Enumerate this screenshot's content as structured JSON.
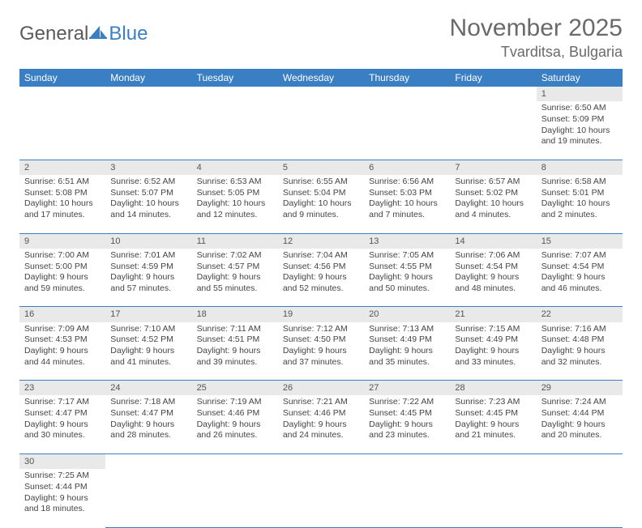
{
  "logo": {
    "word1": "General",
    "word2": "Blue"
  },
  "title": "November 2025",
  "location": "Tvarditsa, Bulgaria",
  "day_headers": [
    "Sunday",
    "Monday",
    "Tuesday",
    "Wednesday",
    "Thursday",
    "Friday",
    "Saturday"
  ],
  "colors": {
    "header_bg": "#3a7fc4",
    "header_text": "#ffffff",
    "daynum_bg": "#e9e9e9",
    "border": "#3a7fc4",
    "title_color": "#6a6a6a"
  },
  "weeks": [
    [
      null,
      null,
      null,
      null,
      null,
      null,
      {
        "n": "1",
        "sunrise": "Sunrise: 6:50 AM",
        "sunset": "Sunset: 5:09 PM",
        "daylight": "Daylight: 10 hours and 19 minutes."
      }
    ],
    [
      {
        "n": "2",
        "sunrise": "Sunrise: 6:51 AM",
        "sunset": "Sunset: 5:08 PM",
        "daylight": "Daylight: 10 hours and 17 minutes."
      },
      {
        "n": "3",
        "sunrise": "Sunrise: 6:52 AM",
        "sunset": "Sunset: 5:07 PM",
        "daylight": "Daylight: 10 hours and 14 minutes."
      },
      {
        "n": "4",
        "sunrise": "Sunrise: 6:53 AM",
        "sunset": "Sunset: 5:05 PM",
        "daylight": "Daylight: 10 hours and 12 minutes."
      },
      {
        "n": "5",
        "sunrise": "Sunrise: 6:55 AM",
        "sunset": "Sunset: 5:04 PM",
        "daylight": "Daylight: 10 hours and 9 minutes."
      },
      {
        "n": "6",
        "sunrise": "Sunrise: 6:56 AM",
        "sunset": "Sunset: 5:03 PM",
        "daylight": "Daylight: 10 hours and 7 minutes."
      },
      {
        "n": "7",
        "sunrise": "Sunrise: 6:57 AM",
        "sunset": "Sunset: 5:02 PM",
        "daylight": "Daylight: 10 hours and 4 minutes."
      },
      {
        "n": "8",
        "sunrise": "Sunrise: 6:58 AM",
        "sunset": "Sunset: 5:01 PM",
        "daylight": "Daylight: 10 hours and 2 minutes."
      }
    ],
    [
      {
        "n": "9",
        "sunrise": "Sunrise: 7:00 AM",
        "sunset": "Sunset: 5:00 PM",
        "daylight": "Daylight: 9 hours and 59 minutes."
      },
      {
        "n": "10",
        "sunrise": "Sunrise: 7:01 AM",
        "sunset": "Sunset: 4:59 PM",
        "daylight": "Daylight: 9 hours and 57 minutes."
      },
      {
        "n": "11",
        "sunrise": "Sunrise: 7:02 AM",
        "sunset": "Sunset: 4:57 PM",
        "daylight": "Daylight: 9 hours and 55 minutes."
      },
      {
        "n": "12",
        "sunrise": "Sunrise: 7:04 AM",
        "sunset": "Sunset: 4:56 PM",
        "daylight": "Daylight: 9 hours and 52 minutes."
      },
      {
        "n": "13",
        "sunrise": "Sunrise: 7:05 AM",
        "sunset": "Sunset: 4:55 PM",
        "daylight": "Daylight: 9 hours and 50 minutes."
      },
      {
        "n": "14",
        "sunrise": "Sunrise: 7:06 AM",
        "sunset": "Sunset: 4:54 PM",
        "daylight": "Daylight: 9 hours and 48 minutes."
      },
      {
        "n": "15",
        "sunrise": "Sunrise: 7:07 AM",
        "sunset": "Sunset: 4:54 PM",
        "daylight": "Daylight: 9 hours and 46 minutes."
      }
    ],
    [
      {
        "n": "16",
        "sunrise": "Sunrise: 7:09 AM",
        "sunset": "Sunset: 4:53 PM",
        "daylight": "Daylight: 9 hours and 44 minutes."
      },
      {
        "n": "17",
        "sunrise": "Sunrise: 7:10 AM",
        "sunset": "Sunset: 4:52 PM",
        "daylight": "Daylight: 9 hours and 41 minutes."
      },
      {
        "n": "18",
        "sunrise": "Sunrise: 7:11 AM",
        "sunset": "Sunset: 4:51 PM",
        "daylight": "Daylight: 9 hours and 39 minutes."
      },
      {
        "n": "19",
        "sunrise": "Sunrise: 7:12 AM",
        "sunset": "Sunset: 4:50 PM",
        "daylight": "Daylight: 9 hours and 37 minutes."
      },
      {
        "n": "20",
        "sunrise": "Sunrise: 7:13 AM",
        "sunset": "Sunset: 4:49 PM",
        "daylight": "Daylight: 9 hours and 35 minutes."
      },
      {
        "n": "21",
        "sunrise": "Sunrise: 7:15 AM",
        "sunset": "Sunset: 4:49 PM",
        "daylight": "Daylight: 9 hours and 33 minutes."
      },
      {
        "n": "22",
        "sunrise": "Sunrise: 7:16 AM",
        "sunset": "Sunset: 4:48 PM",
        "daylight": "Daylight: 9 hours and 32 minutes."
      }
    ],
    [
      {
        "n": "23",
        "sunrise": "Sunrise: 7:17 AM",
        "sunset": "Sunset: 4:47 PM",
        "daylight": "Daylight: 9 hours and 30 minutes."
      },
      {
        "n": "24",
        "sunrise": "Sunrise: 7:18 AM",
        "sunset": "Sunset: 4:47 PM",
        "daylight": "Daylight: 9 hours and 28 minutes."
      },
      {
        "n": "25",
        "sunrise": "Sunrise: 7:19 AM",
        "sunset": "Sunset: 4:46 PM",
        "daylight": "Daylight: 9 hours and 26 minutes."
      },
      {
        "n": "26",
        "sunrise": "Sunrise: 7:21 AM",
        "sunset": "Sunset: 4:46 PM",
        "daylight": "Daylight: 9 hours and 24 minutes."
      },
      {
        "n": "27",
        "sunrise": "Sunrise: 7:22 AM",
        "sunset": "Sunset: 4:45 PM",
        "daylight": "Daylight: 9 hours and 23 minutes."
      },
      {
        "n": "28",
        "sunrise": "Sunrise: 7:23 AM",
        "sunset": "Sunset: 4:45 PM",
        "daylight": "Daylight: 9 hours and 21 minutes."
      },
      {
        "n": "29",
        "sunrise": "Sunrise: 7:24 AM",
        "sunset": "Sunset: 4:44 PM",
        "daylight": "Daylight: 9 hours and 20 minutes."
      }
    ],
    [
      {
        "n": "30",
        "sunrise": "Sunrise: 7:25 AM",
        "sunset": "Sunset: 4:44 PM",
        "daylight": "Daylight: 9 hours and 18 minutes."
      },
      null,
      null,
      null,
      null,
      null,
      null
    ]
  ]
}
